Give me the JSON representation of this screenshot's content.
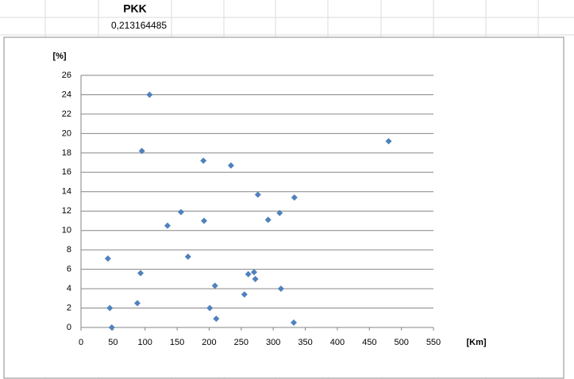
{
  "sheet": {
    "header": "PKK",
    "value": "0,213164485"
  },
  "chart_data": {
    "type": "scatter",
    "y_label": "[%]",
    "x_label": "[Km]",
    "color": "#4f81bd",
    "grid": true,
    "xlim": [
      0,
      550
    ],
    "xticks": [
      0,
      50,
      100,
      150,
      200,
      250,
      300,
      350,
      400,
      450,
      500,
      550
    ],
    "ylim": [
      0,
      26
    ],
    "yticks": [
      0,
      2,
      4,
      6,
      8,
      10,
      12,
      14,
      16,
      18,
      20,
      22,
      24,
      26
    ],
    "x": [
      107,
      95,
      480,
      191,
      234,
      276,
      333,
      156,
      310,
      192,
      292,
      135,
      42,
      167,
      93,
      261,
      270,
      272,
      209,
      312,
      255,
      88,
      45,
      201,
      211,
      332,
      48
    ],
    "values": [
      24,
      18.2,
      19.2,
      17.2,
      16.7,
      13.7,
      13.4,
      11.9,
      11.8,
      11.0,
      11.1,
      10.5,
      7.1,
      7.3,
      5.6,
      5.5,
      5.7,
      5.0,
      4.3,
      4.0,
      3.4,
      2.5,
      2.0,
      2.0,
      0.9,
      0.5,
      0
    ]
  }
}
